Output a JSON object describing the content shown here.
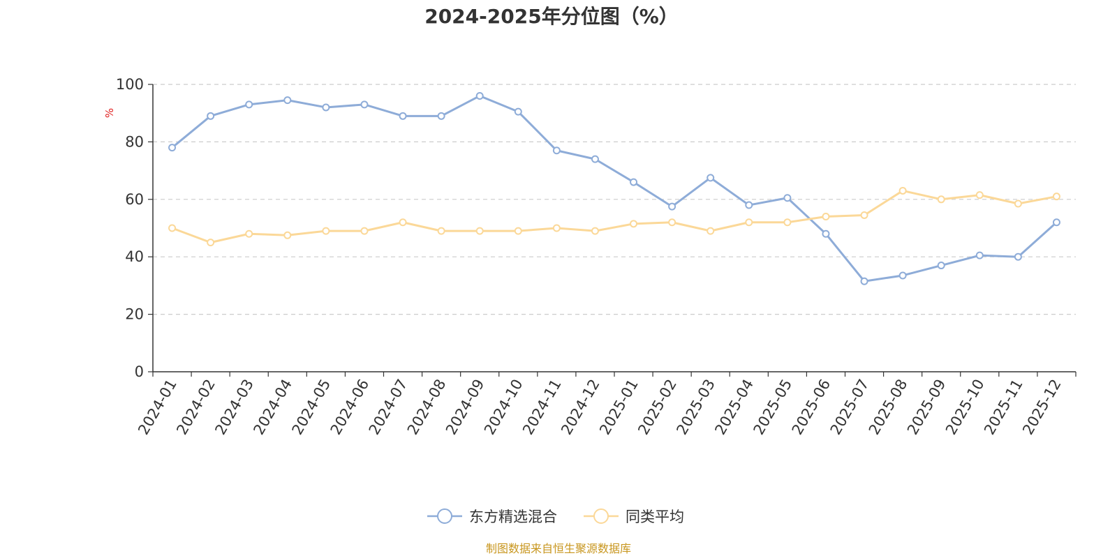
{
  "chart_data": {
    "type": "line",
    "title": "2024-2025年分位图（%）",
    "ylabel": "%",
    "xlabel": "",
    "ylim": [
      0,
      100
    ],
    "yticks": [
      0,
      20,
      40,
      60,
      80,
      100
    ],
    "grid": true,
    "legend_position": "bottom",
    "categories": [
      "2024-01",
      "2024-02",
      "2024-03",
      "2024-04",
      "2024-05",
      "2024-06",
      "2024-07",
      "2024-08",
      "2024-09",
      "2024-10",
      "2024-11",
      "2024-12",
      "2025-01",
      "2025-02",
      "2025-03",
      "2025-04",
      "2025-05",
      "2025-06",
      "2025-07",
      "2025-08",
      "2025-09",
      "2025-10",
      "2025-11",
      "2025-12"
    ],
    "series": [
      {
        "name": "东方精选混合",
        "color": "#8eacd8",
        "values": [
          78,
          89,
          93,
          94.5,
          92,
          93,
          89,
          89,
          96,
          90.5,
          77,
          74,
          66,
          57.5,
          67.5,
          58,
          60.5,
          48,
          31.5,
          33.5,
          37,
          40.5,
          40,
          52
        ]
      },
      {
        "name": "同类平均",
        "color": "#fbd898",
        "values": [
          50,
          45,
          48,
          47.5,
          49,
          49,
          52,
          49,
          49,
          49,
          50,
          49,
          51.5,
          52,
          49,
          52,
          52,
          54,
          54.5,
          63,
          60,
          61.5,
          58.5,
          61
        ]
      }
    ]
  },
  "colors": {
    "axis": "#333333",
    "grid": "#cccccc",
    "unit": "#e02020",
    "source": "#c8961e"
  },
  "source": "制图数据来自恒生聚源数据库"
}
